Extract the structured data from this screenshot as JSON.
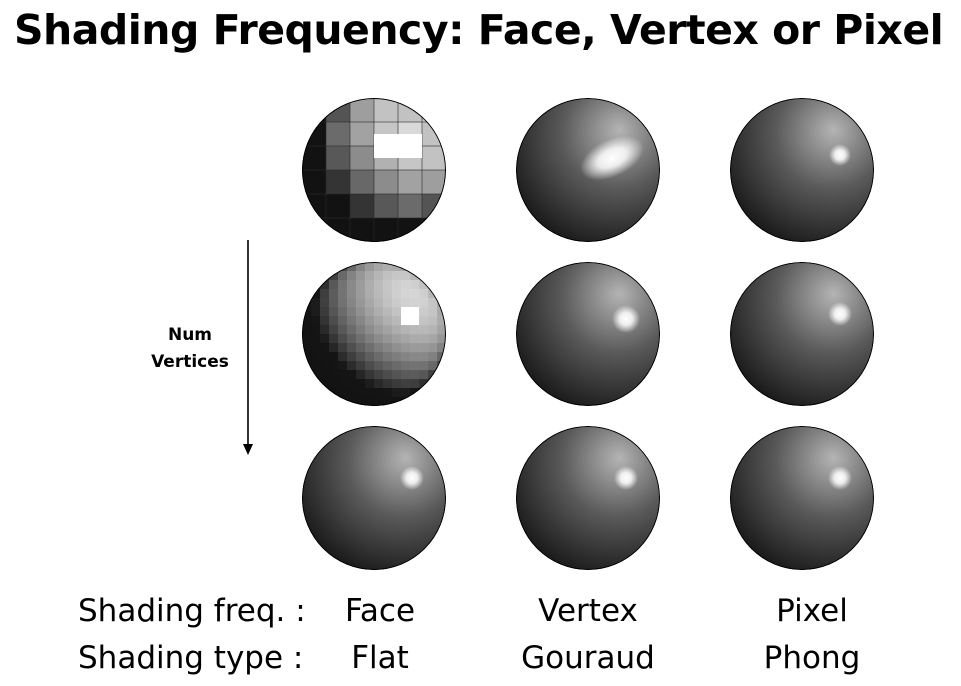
{
  "title": "Shading Frequency: Face, Vertex or Pixel",
  "axis": {
    "label_line1": "Num",
    "label_line2": "Vertices"
  },
  "rows": [
    {
      "label": "Shading freq. :",
      "values": [
        "Face",
        "Vertex",
        "Pixel"
      ]
    },
    {
      "label": "Shading type :",
      "values": [
        "Flat",
        "Gouraud",
        "Phong"
      ]
    }
  ],
  "colors": {
    "sphere_light": "#b4b4b4",
    "sphere_mid": "#5a5a5a",
    "sphere_dark": "#101010",
    "highlight": "#ffffff",
    "background": "#ffffff"
  }
}
